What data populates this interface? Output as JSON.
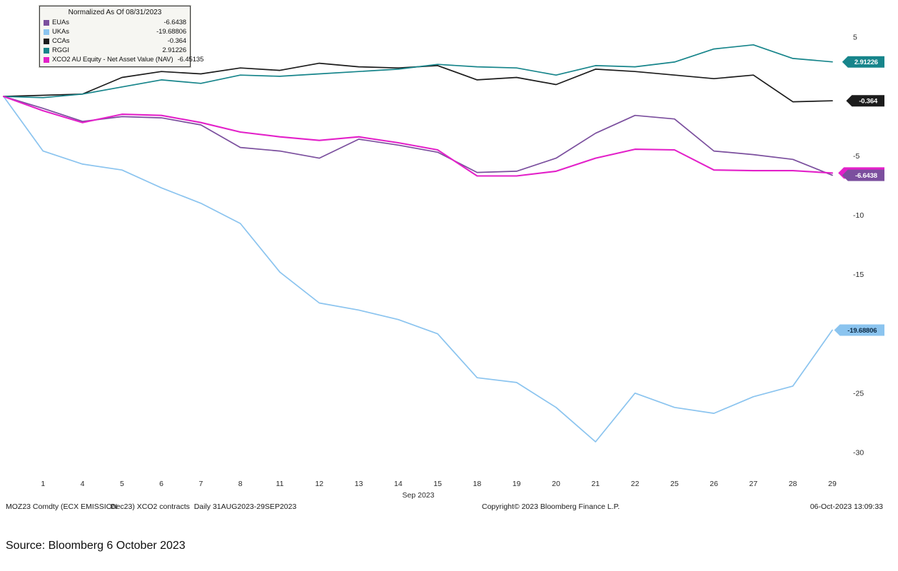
{
  "source_note": {
    "text": "Source: Bloomberg 6 October 2023"
  },
  "footer": {
    "left_part1": "MOZ23 Comdty (ECX EMISSION",
    "left_part2": "Dec23) XCO2 contracts  Daily 31AUG2023-29SEP2023",
    "copyright": "Copyright© 2023 Bloomberg Finance L.P.",
    "timestamp": "06-Oct-2023 13:09:33"
  },
  "chart_data": {
    "type": "line",
    "title": "Normalized As Of 08/31/2023",
    "x_axis_label": "Sep 2023",
    "x": [
      "08/31",
      "1",
      "4",
      "5",
      "6",
      "7",
      "8",
      "11",
      "12",
      "13",
      "14",
      "15",
      "18",
      "19",
      "20",
      "21",
      "22",
      "25",
      "26",
      "27",
      "28",
      "29"
    ],
    "ylim": [
      -30,
      5
    ],
    "y_tick_step": 5,
    "y_ticks_visible": [
      5,
      -5,
      -10,
      -15,
      -25,
      -30
    ],
    "grid": false,
    "legend_position": "top-left",
    "series": [
      {
        "name": "EUAs",
        "color": "#7B4F9E",
        "badge_text": "#ffffff",
        "last_label": "-6.6438",
        "values": [
          0,
          -1.0,
          -2.1,
          -1.7,
          -1.8,
          -2.4,
          -4.3,
          -4.6,
          -5.2,
          -3.6,
          -4.1,
          -4.7,
          -6.4,
          -6.3,
          -5.2,
          -3.1,
          -1.6,
          -1.9,
          -4.6,
          -4.9,
          -5.3,
          -6.6438
        ]
      },
      {
        "name": "UKAs",
        "color": "#8BC4EF",
        "badge_text": "#0d2b45",
        "last_label": "-19.68806",
        "values": [
          0,
          -4.6,
          -5.7,
          -6.2,
          -7.7,
          -9.0,
          -10.7,
          -14.8,
          -17.4,
          -18.0,
          -18.8,
          -20.0,
          -23.7,
          -24.1,
          -26.2,
          -29.1,
          -25.0,
          -26.2,
          -26.7,
          -25.3,
          -24.4,
          -19.68806
        ]
      },
      {
        "name": "CCAs",
        "color": "#1C1C1C",
        "badge_text": "#ffffff",
        "last_label": "-0.364",
        "values": [
          0,
          0.1,
          0.2,
          1.6,
          2.1,
          1.9,
          2.4,
          2.2,
          2.8,
          2.5,
          2.4,
          2.6,
          1.4,
          1.6,
          1.0,
          2.3,
          2.1,
          1.8,
          1.5,
          1.8,
          -0.45,
          -0.364
        ]
      },
      {
        "name": "RGGI",
        "color": "#17858B",
        "badge_text": "#ffffff",
        "last_label": "2.91226",
        "values": [
          0,
          -0.1,
          0.2,
          0.8,
          1.4,
          1.1,
          1.8,
          1.7,
          1.9,
          2.1,
          2.3,
          2.7,
          2.5,
          2.4,
          1.8,
          2.6,
          2.5,
          2.9,
          4.0,
          4.35,
          3.2,
          2.91226
        ]
      },
      {
        "name": "XCO2 AU Equity - Net Asset Value (NAV)",
        "color": "#E321C9",
        "badge_text": "#ffffff",
        "last_label": "-6.45135",
        "values": [
          0,
          -1.2,
          -2.2,
          -1.5,
          -1.6,
          -2.2,
          -3.0,
          -3.4,
          -3.7,
          -3.4,
          -3.9,
          -4.5,
          -6.7,
          -6.7,
          -6.3,
          -5.2,
          -4.45,
          -4.5,
          -6.2,
          -6.25,
          -6.25,
          -6.45135
        ]
      }
    ]
  }
}
